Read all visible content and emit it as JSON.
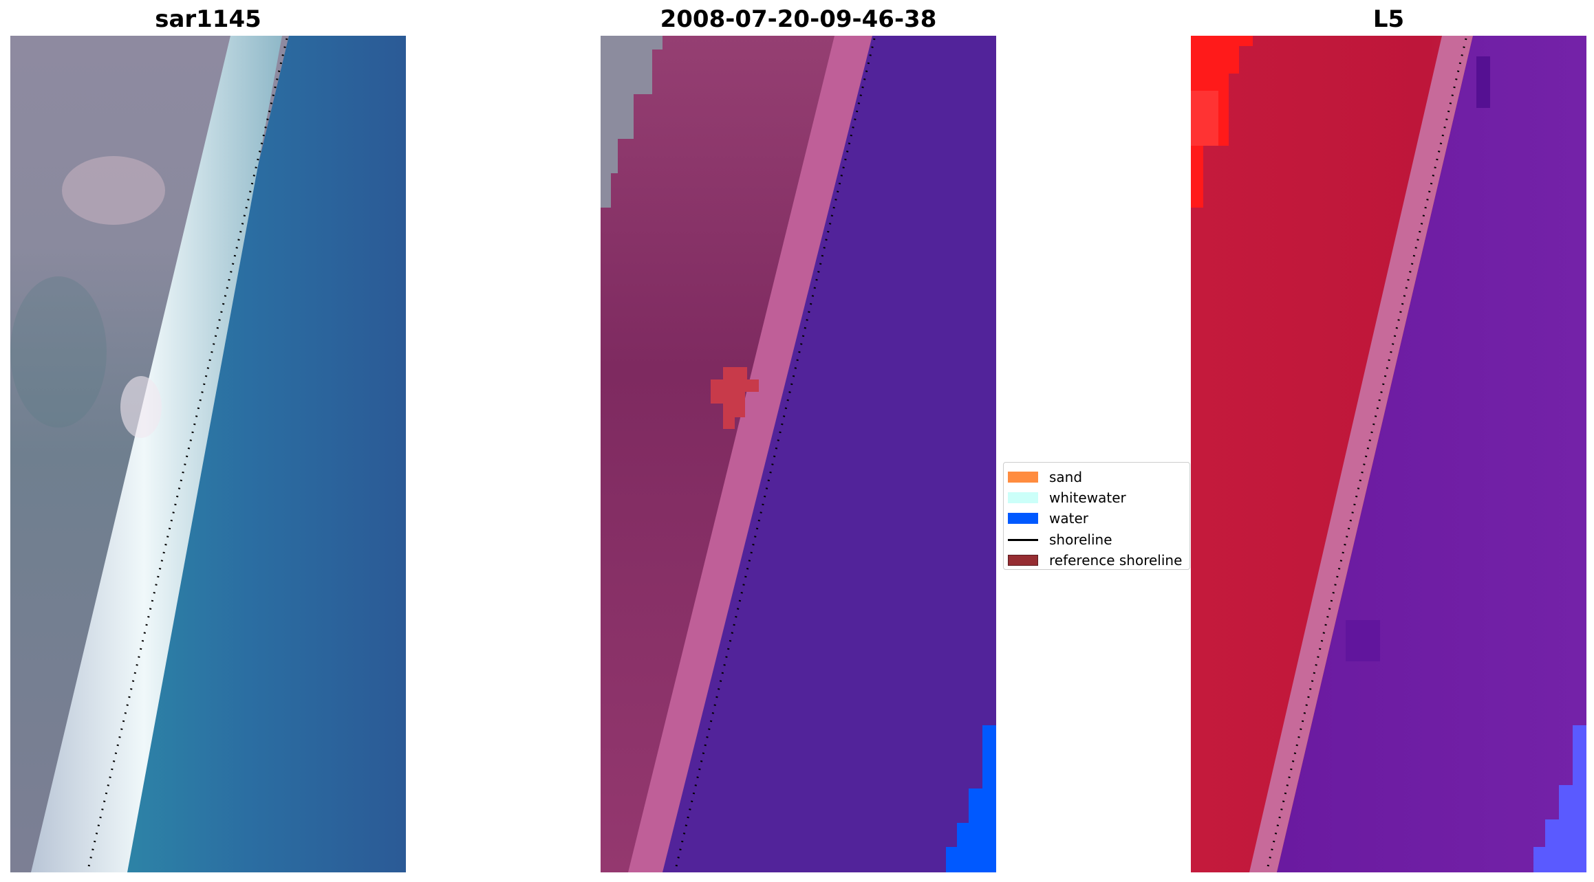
{
  "titles": {
    "left": "sar1145",
    "center": "2008-07-20-09-46-38",
    "right": "L5"
  },
  "legend": {
    "items": [
      {
        "label": "sand",
        "color": "#ff8c3f",
        "kind": "patch"
      },
      {
        "label": "whitewater",
        "color": "#ccfff9",
        "kind": "patch"
      },
      {
        "label": "water",
        "color": "#0059ff",
        "kind": "patch"
      },
      {
        "label": "shoreline",
        "color": "#000000",
        "kind": "line"
      },
      {
        "label": "reference shoreline",
        "color": "#962d32",
        "kind": "patch"
      }
    ]
  },
  "colors": {
    "rgb_land": "#7f7f95",
    "rgb_water": "#2c6ea3",
    "rgb_whitewater": "#e9f5f6",
    "class_land": "#8a3a6c",
    "class_beach": "#b5568f",
    "class_water": "#52239a",
    "class_water_blue": "#0059ff",
    "class_sand_red": "#c83a4a",
    "class_grey": "#8c8c9c",
    "mndwi_land": "#c2163a",
    "mndwi_water": "#6b1fa0",
    "mndwi_red": "#ff1a1a",
    "mndwi_blue": "#5a5aff",
    "shoreline": "#000000"
  }
}
